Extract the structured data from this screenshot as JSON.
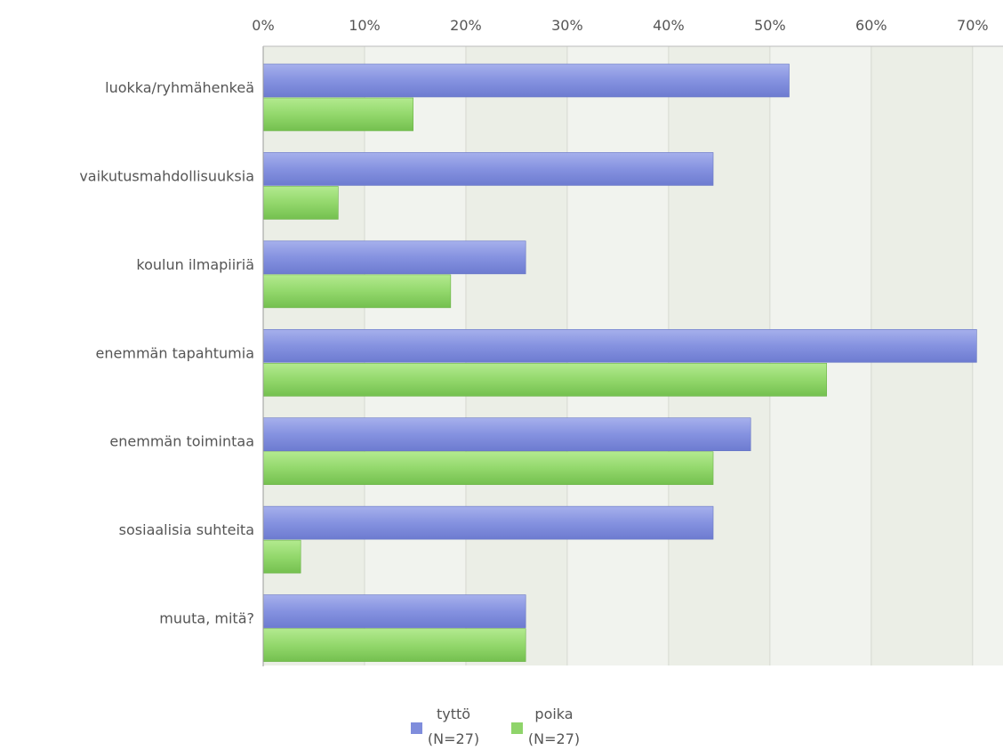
{
  "chart_data": {
    "type": "bar",
    "orientation": "horizontal",
    "categories": [
      "luokka/ryhmähenkeä",
      "vaikutusmahdollisuuksia",
      "koulun ilmapiiriä",
      "enemmän tapahtumia",
      "enemmän toimintaa",
      "sosiaalisia suhteita",
      "muuta, mitä?"
    ],
    "series": [
      {
        "name": "tyttö",
        "name_sub": "(N=27)",
        "color": "#7f8ddc",
        "values": [
          51.9,
          44.4,
          25.9,
          70.4,
          48.1,
          44.4,
          25.9
        ]
      },
      {
        "name": "poika",
        "name_sub": "(N=27)",
        "color": "#8fd46a",
        "values": [
          14.8,
          7.4,
          18.5,
          55.6,
          44.4,
          3.7,
          25.9
        ]
      }
    ],
    "x_ticks": [
      "0%",
      "10%",
      "20%",
      "30%",
      "40%",
      "50%",
      "60%",
      "70%"
    ],
    "xlim": [
      0,
      73
    ],
    "value_unit": "%",
    "grid": true,
    "legend_position": "bottom"
  }
}
